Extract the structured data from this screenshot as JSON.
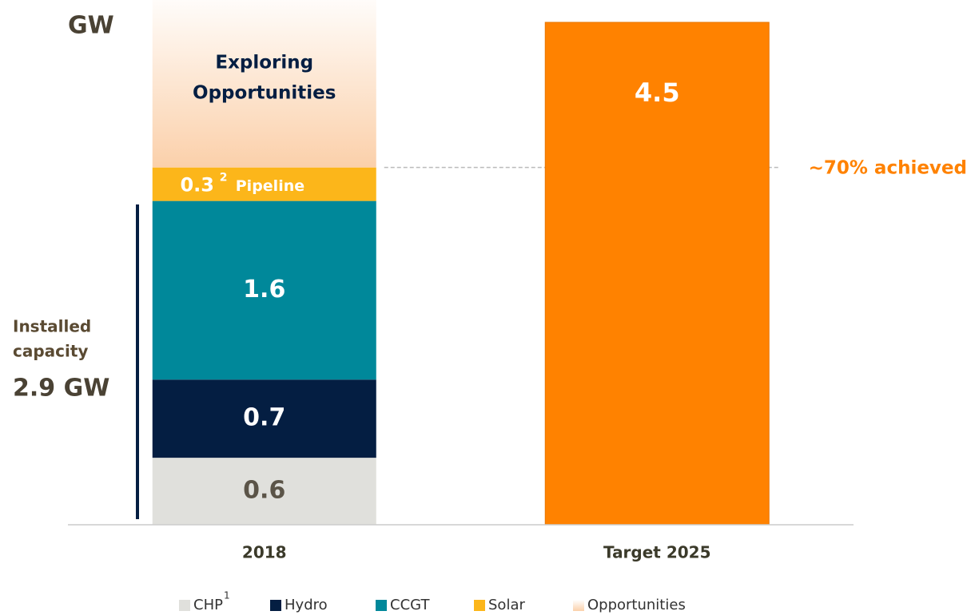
{
  "chart_data": {
    "type": "stacked-bar",
    "unit_label": "GW",
    "categories": [
      "2018",
      "Target 2025"
    ],
    "series": [
      {
        "name": "CHP",
        "footnote": "1",
        "color": "#e0e0dc",
        "label_color": "#5b5448",
        "values": [
          0.6,
          null
        ]
      },
      {
        "name": "Hydro",
        "color": "#041e42",
        "label_color": "#ffffff",
        "values": [
          0.7,
          null
        ]
      },
      {
        "name": "CCGT",
        "color": "#00889a",
        "label_color": "#ffffff",
        "values": [
          1.6,
          null
        ]
      },
      {
        "name": "Solar",
        "color": "#fcb61a",
        "label_color": "#ffffff",
        "footnote": "2",
        "label_suffix": "Pipeline",
        "values": [
          0.3,
          null
        ]
      },
      {
        "name": "Opportunities",
        "color": "#fbd0aa",
        "values": [
          1.6,
          null
        ]
      }
    ],
    "target": {
      "values": [
        null,
        4.5
      ],
      "color": "#ff8200"
    },
    "ylim": [
      0,
      4.7
    ],
    "annotations": {
      "opportunities": [
        "Exploring",
        "Opportunities"
      ],
      "installed": [
        "Installed",
        "capacity"
      ],
      "installed_total": "2.9 GW",
      "achieved": "~70% achieved"
    }
  }
}
